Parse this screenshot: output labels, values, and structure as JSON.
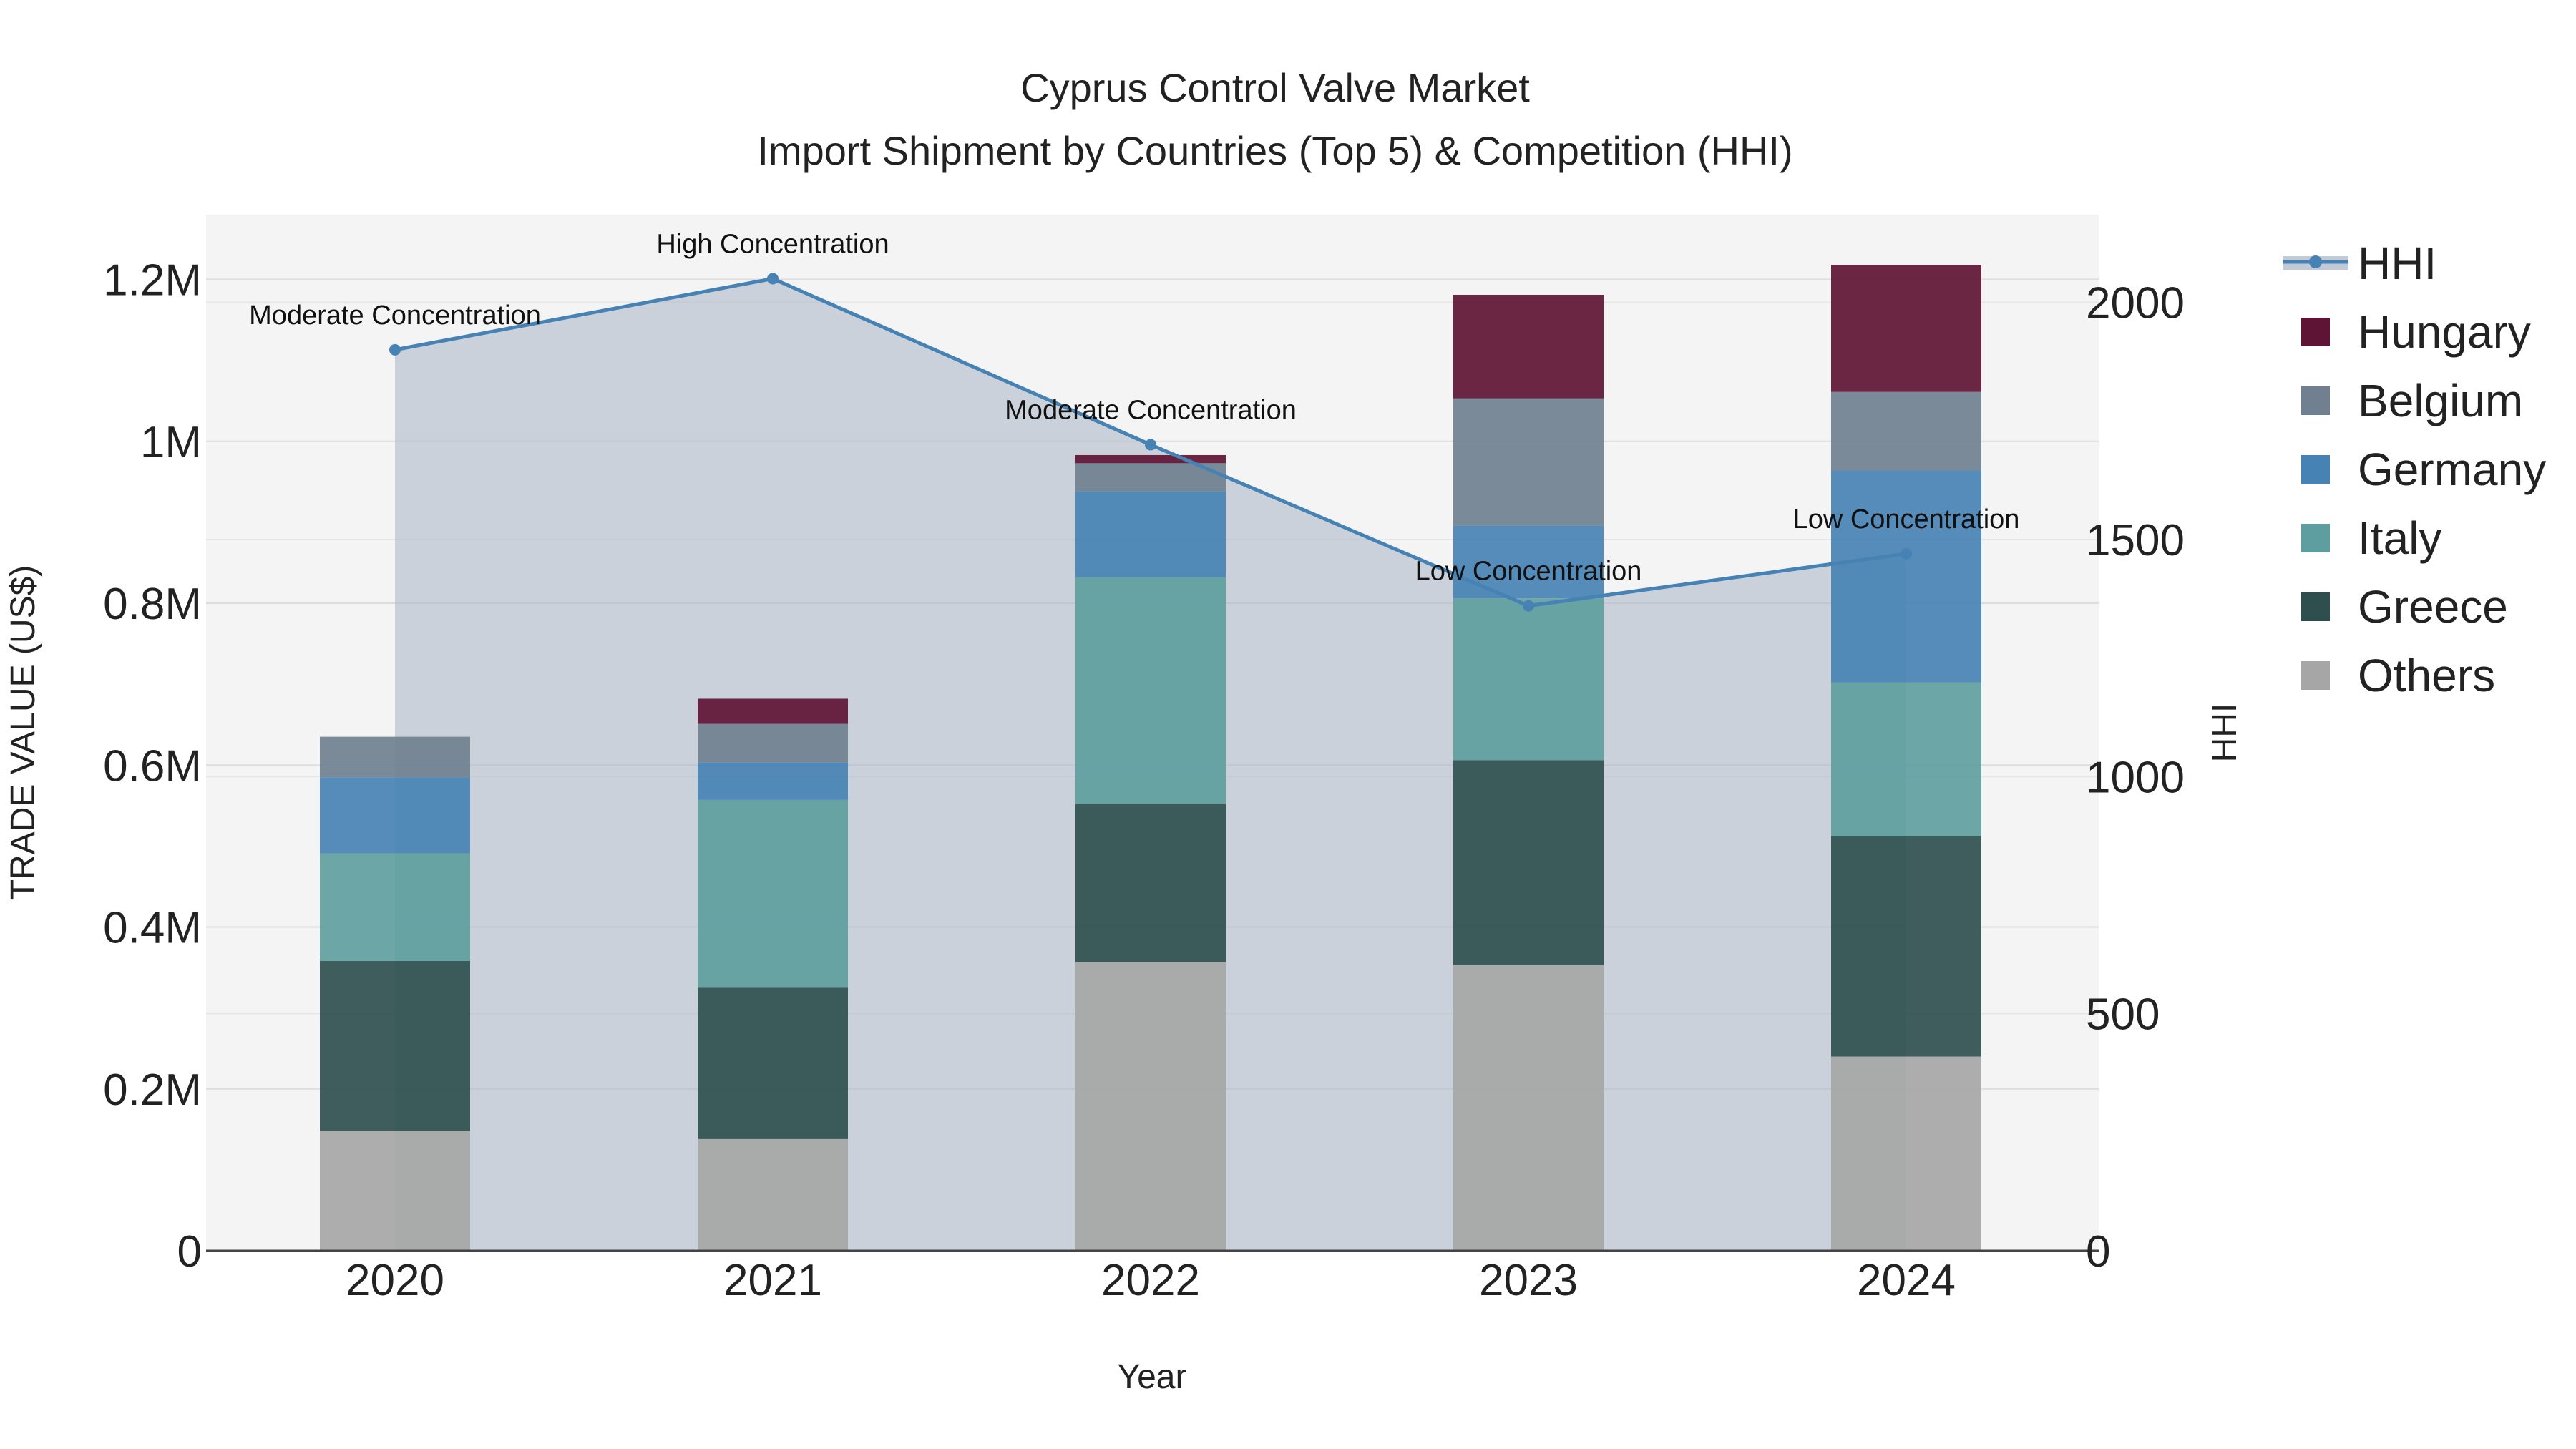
{
  "chart_data": {
    "type": "bar",
    "stacked": true,
    "title": "Cyprus Control Valve Market",
    "subtitle": "Import Shipment by Countries (Top 5) & Competition (HHI)",
    "xlabel": "Year",
    "ylabel": "TRADE VALUE (US$)",
    "y2label": "HHI",
    "categories": [
      "2020",
      "2021",
      "2022",
      "2023",
      "2024"
    ],
    "ylim": [
      0,
      1280000
    ],
    "y2lim": [
      0,
      2185
    ],
    "yticks": [
      0,
      200000,
      400000,
      600000,
      800000,
      1000000,
      1200000
    ],
    "ytick_labels": [
      "0",
      "0.2M",
      "0.4M",
      "0.6M",
      "0.8M",
      "1M",
      "1.2M"
    ],
    "y2ticks": [
      0,
      500,
      1000,
      1500,
      2000
    ],
    "y2tick_labels": [
      "0",
      "500",
      "1000",
      "1500",
      "2000"
    ],
    "series": [
      {
        "name": "Others",
        "color": "#a6a6a6",
        "values": [
          148000,
          138000,
          357000,
          353000,
          240000
        ]
      },
      {
        "name": "Greece",
        "color": "#2f4f4f",
        "values": [
          210000,
          187000,
          195000,
          253000,
          272000
        ]
      },
      {
        "name": "Italy",
        "color": "#5f9ea0",
        "values": [
          133000,
          232000,
          280000,
          200000,
          190000
        ]
      },
      {
        "name": "Germany",
        "color": "#4682b4",
        "values": [
          94000,
          46000,
          106000,
          90000,
          262000
        ]
      },
      {
        "name": "Belgium",
        "color": "#708090",
        "values": [
          50000,
          48000,
          35000,
          157000,
          97000
        ]
      },
      {
        "name": "Hungary",
        "color": "#5e1434",
        "values": [
          0,
          31000,
          10000,
          128000,
          157000
        ]
      }
    ],
    "hhi": {
      "name": "HHI",
      "color": "#4682b4",
      "values": [
        1900,
        2050,
        1700,
        1360,
        1470
      ],
      "annotations": [
        "Moderate Concentration",
        "High Concentration",
        "Moderate Concentration",
        "Low Concentration",
        "Low Concentration"
      ]
    },
    "legend_order": [
      "HHI",
      "Hungary",
      "Belgium",
      "Germany",
      "Italy",
      "Greece",
      "Others"
    ],
    "legend_position": "right",
    "grid": true
  }
}
